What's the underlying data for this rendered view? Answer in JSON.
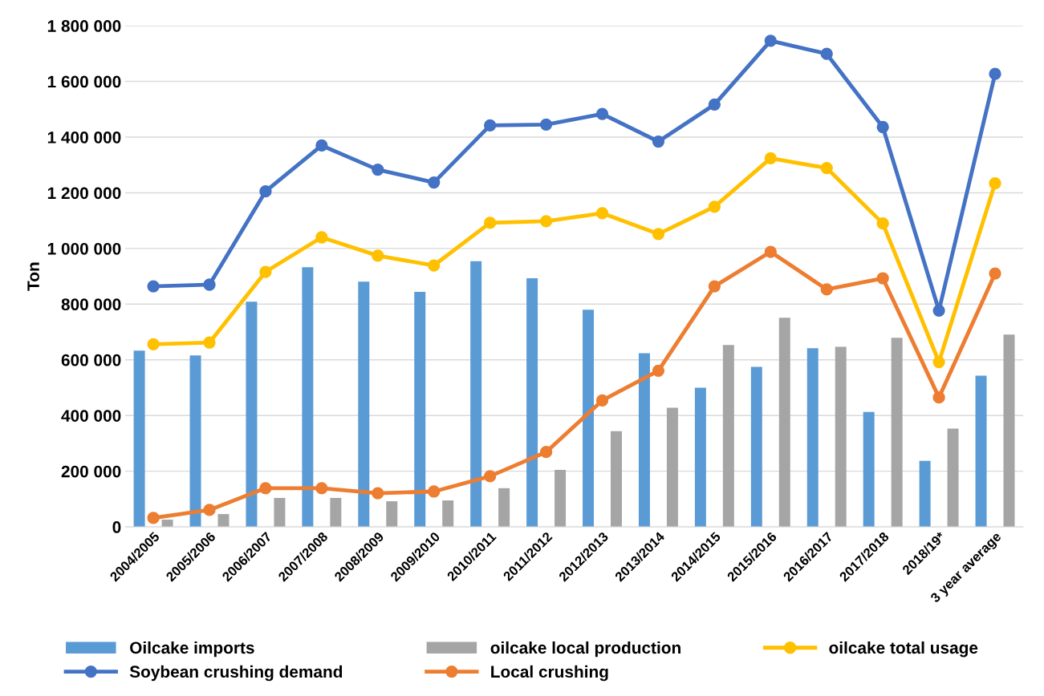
{
  "chart_data": {
    "type": "bar",
    "ylabel": "Ton",
    "categories": [
      "2004/2005",
      "2005/2006",
      "2006/2007",
      "2007/2008",
      "2008/2009",
      "2009/2010",
      "2010/2011",
      "2011/2012",
      "2012/2013",
      "2013/2014",
      "2014/2015",
      "2015/2016",
      "2016/2017",
      "2017/2018",
      "2018/19*",
      "3 year average"
    ],
    "series": [
      {
        "name": "Oilcake imports",
        "color": "#5b9bd5",
        "values": [
          633000,
          616000,
          809000,
          933000,
          881000,
          844000,
          954000,
          893000,
          780000,
          624000,
          500000,
          575000,
          642000,
          413000,
          237000,
          543000
        ]
      },
      {
        "name": "oilcake local production",
        "color": "#a5a5a5",
        "values": [
          26000,
          46000,
          104000,
          104000,
          92000,
          95000,
          139000,
          205000,
          344000,
          428000,
          653000,
          751000,
          647000,
          679000,
          353000,
          691000
        ]
      },
      {
        "name": "oilcake total usage",
        "type": "line",
        "color": "#ffc000",
        "values": [
          656000,
          662000,
          916000,
          1040000,
          974000,
          939000,
          1092000,
          1098000,
          1127000,
          1052000,
          1150000,
          1324000,
          1289000,
          1090000,
          592000,
          1234000
        ]
      },
      {
        "name": "Soybean crushing demand",
        "type": "line",
        "color": "#4472c4",
        "values": [
          864000,
          870000,
          1205000,
          1370000,
          1283000,
          1237000,
          1442000,
          1445000,
          1483000,
          1384000,
          1517000,
          1746000,
          1699000,
          1436000,
          777000,
          1627000
        ]
      },
      {
        "name": "Local crushing",
        "type": "line",
        "color": "#ed7d31",
        "values": [
          32000,
          61000,
          139000,
          139000,
          121000,
          127000,
          182000,
          269000,
          454000,
          561000,
          864000,
          988000,
          853000,
          893000,
          465000,
          910000
        ]
      }
    ],
    "ylim": [
      0,
      1800000
    ],
    "yticks": [
      0,
      {
        "value": 200000,
        "label": "200 000"
      },
      {
        "value": 400000,
        "label": "400 000"
      },
      {
        "value": 600000,
        "label": "600 000"
      },
      {
        "value": 800000,
        "label": "800 000"
      },
      {
        "value": 1000000,
        "label": "1 000 000"
      },
      {
        "value": 1200000,
        "label": "1 200 000"
      },
      {
        "value": 1400000,
        "label": "1 400 000"
      },
      {
        "value": 1600000,
        "label": "1 600 000"
      },
      {
        "value": 1800000,
        "label": "1 800 000"
      }
    ],
    "grid": "y",
    "legend": "bottom",
    "marker": "circle",
    "line_style": "solid"
  }
}
